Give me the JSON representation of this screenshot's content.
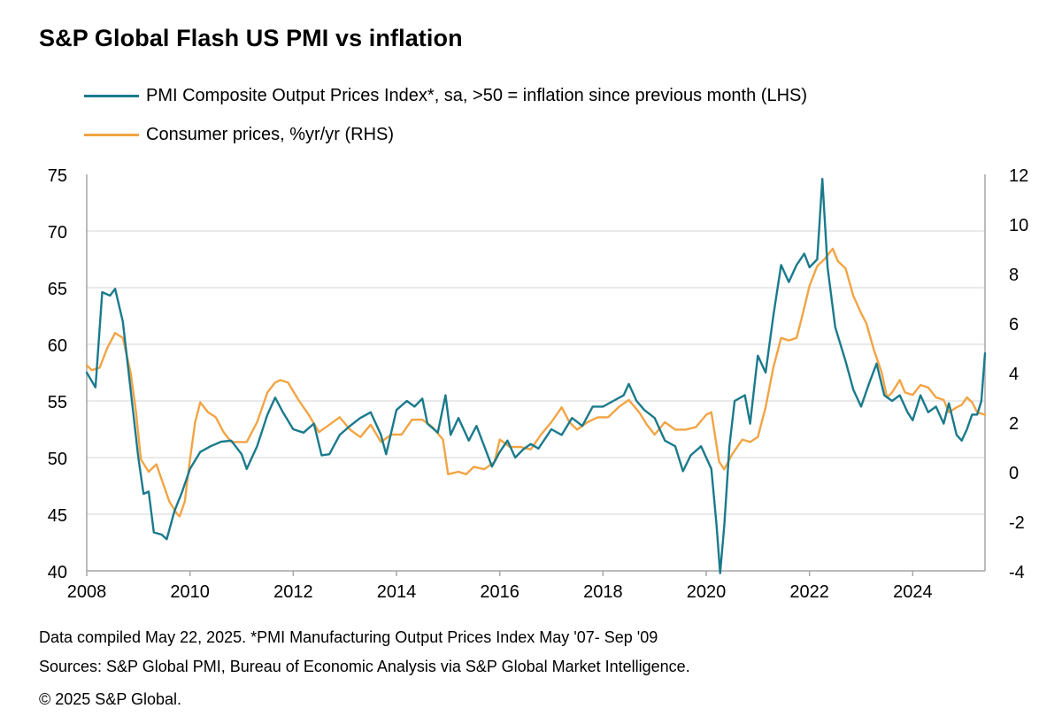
{
  "title": "S&P Global Flash US PMI vs inflation",
  "colors": {
    "pmi": "#1a7a8c",
    "cpi": "#f2a444",
    "grid": "#d4d4d4",
    "axis": "#a6a6a6"
  },
  "legend": [
    {
      "label": "PMI Composite Output Prices Index*, sa, >50 = inflation since previous month (LHS)"
    },
    {
      "label": "Consumer prices, %yr/yr (RHS)"
    }
  ],
  "footer": {
    "line1": "Data compiled May 22, 2025.  *PMI Manufacturing  Output Prices Index May '07- Sep '09",
    "line2": "Sources: S&P Global PMI,  Bureau of Economic Analysis via S&P Global Market Intelligence.",
    "line3": "© 2025 S&P Global."
  },
  "chart_data": {
    "type": "line",
    "title": "S&P Global Flash US PMI vs inflation",
    "x_range": [
      2008.0,
      2025.4
    ],
    "x_ticks": [
      "2008",
      "2010",
      "2012",
      "2014",
      "2016",
      "2018",
      "2020",
      "2022",
      "2024"
    ],
    "y_left": {
      "label": "LHS",
      "range": [
        40,
        75
      ],
      "ticks": [
        "75",
        "70",
        "65",
        "60",
        "55",
        "50",
        "45",
        "40"
      ]
    },
    "y_right": {
      "label": "RHS",
      "range": [
        -4,
        12
      ],
      "ticks": [
        "12",
        "10",
        "8",
        "6",
        "4",
        "2",
        "0",
        "-2",
        "-4"
      ]
    },
    "grid": true,
    "series": [
      {
        "name": "PMI Composite Output Prices Index*, sa, >50 = inflation since previous month (LHS)",
        "axis": "left",
        "points": [
          [
            2008.0,
            57.5
          ],
          [
            2008.17,
            56.2
          ],
          [
            2008.3,
            64.6
          ],
          [
            2008.45,
            64.3
          ],
          [
            2008.55,
            64.9
          ],
          [
            2008.7,
            62.0
          ],
          [
            2008.85,
            56.0
          ],
          [
            2009.0,
            50.0
          ],
          [
            2009.1,
            46.8
          ],
          [
            2009.2,
            47.0
          ],
          [
            2009.3,
            43.4
          ],
          [
            2009.45,
            43.2
          ],
          [
            2009.55,
            42.8
          ],
          [
            2009.7,
            45.3
          ],
          [
            2009.85,
            47.0
          ],
          [
            2010.0,
            49.0
          ],
          [
            2010.2,
            50.5
          ],
          [
            2010.4,
            51.0
          ],
          [
            2010.6,
            51.4
          ],
          [
            2010.8,
            51.5
          ],
          [
            2011.0,
            50.3
          ],
          [
            2011.1,
            49.0
          ],
          [
            2011.3,
            51.0
          ],
          [
            2011.5,
            53.8
          ],
          [
            2011.65,
            55.3
          ],
          [
            2011.8,
            54.0
          ],
          [
            2012.0,
            52.5
          ],
          [
            2012.2,
            52.2
          ],
          [
            2012.4,
            53.0
          ],
          [
            2012.55,
            50.2
          ],
          [
            2012.7,
            50.3
          ],
          [
            2012.9,
            52.0
          ],
          [
            2013.1,
            52.8
          ],
          [
            2013.3,
            53.5
          ],
          [
            2013.5,
            54.0
          ],
          [
            2013.7,
            52.0
          ],
          [
            2013.8,
            50.3
          ],
          [
            2014.0,
            54.2
          ],
          [
            2014.2,
            55.0
          ],
          [
            2014.35,
            54.5
          ],
          [
            2014.5,
            55.2
          ],
          [
            2014.6,
            53.0
          ],
          [
            2014.8,
            52.2
          ],
          [
            2014.95,
            55.5
          ],
          [
            2015.05,
            52.0
          ],
          [
            2015.2,
            53.5
          ],
          [
            2015.4,
            51.5
          ],
          [
            2015.55,
            52.8
          ],
          [
            2015.7,
            51.0
          ],
          [
            2015.85,
            49.2
          ],
          [
            2016.0,
            50.5
          ],
          [
            2016.15,
            51.5
          ],
          [
            2016.3,
            50.0
          ],
          [
            2016.45,
            50.7
          ],
          [
            2016.6,
            51.2
          ],
          [
            2016.75,
            50.8
          ],
          [
            2017.0,
            52.5
          ],
          [
            2017.2,
            52.0
          ],
          [
            2017.4,
            53.5
          ],
          [
            2017.6,
            52.8
          ],
          [
            2017.8,
            54.5
          ],
          [
            2018.0,
            54.5
          ],
          [
            2018.2,
            55.0
          ],
          [
            2018.4,
            55.5
          ],
          [
            2018.5,
            56.5
          ],
          [
            2018.65,
            55.0
          ],
          [
            2018.8,
            54.2
          ],
          [
            2019.0,
            53.5
          ],
          [
            2019.2,
            51.5
          ],
          [
            2019.4,
            51.0
          ],
          [
            2019.55,
            48.8
          ],
          [
            2019.7,
            50.2
          ],
          [
            2019.9,
            51.0
          ],
          [
            2020.0,
            50.0
          ],
          [
            2020.1,
            49.0
          ],
          [
            2020.2,
            44.0
          ],
          [
            2020.27,
            39.8
          ],
          [
            2020.35,
            44.0
          ],
          [
            2020.45,
            51.0
          ],
          [
            2020.55,
            55.0
          ],
          [
            2020.75,
            55.5
          ],
          [
            2020.85,
            53.0
          ],
          [
            2021.0,
            59.0
          ],
          [
            2021.15,
            57.5
          ],
          [
            2021.3,
            62.5
          ],
          [
            2021.45,
            67.0
          ],
          [
            2021.6,
            65.5
          ],
          [
            2021.75,
            67.0
          ],
          [
            2021.9,
            68.0
          ],
          [
            2022.0,
            66.8
          ],
          [
            2022.15,
            67.5
          ],
          [
            2022.25,
            74.6
          ],
          [
            2022.35,
            66.8
          ],
          [
            2022.5,
            61.5
          ],
          [
            2022.7,
            58.5
          ],
          [
            2022.85,
            56.0
          ],
          [
            2023.0,
            54.5
          ],
          [
            2023.15,
            56.5
          ],
          [
            2023.3,
            58.3
          ],
          [
            2023.45,
            55.5
          ],
          [
            2023.6,
            55.0
          ],
          [
            2023.75,
            55.5
          ],
          [
            2023.9,
            54.0
          ],
          [
            2024.0,
            53.3
          ],
          [
            2024.15,
            55.5
          ],
          [
            2024.3,
            54.0
          ],
          [
            2024.45,
            54.5
          ],
          [
            2024.6,
            53.0
          ],
          [
            2024.7,
            54.8
          ],
          [
            2024.85,
            52.0
          ],
          [
            2024.95,
            51.5
          ],
          [
            2025.05,
            52.5
          ],
          [
            2025.15,
            53.8
          ],
          [
            2025.25,
            53.8
          ],
          [
            2025.33,
            55.0
          ],
          [
            2025.4,
            59.2
          ]
        ]
      },
      {
        "name": "Consumer prices, %yr/yr (RHS)",
        "axis": "right",
        "points": [
          [
            2008.0,
            4.3
          ],
          [
            2008.1,
            4.1
          ],
          [
            2008.25,
            4.2
          ],
          [
            2008.4,
            5.0
          ],
          [
            2008.55,
            5.6
          ],
          [
            2008.7,
            5.4
          ],
          [
            2008.85,
            4.0
          ],
          [
            2008.95,
            2.5
          ],
          [
            2009.05,
            0.5
          ],
          [
            2009.2,
            0.0
          ],
          [
            2009.35,
            0.3
          ],
          [
            2009.5,
            -0.6
          ],
          [
            2009.6,
            -1.2
          ],
          [
            2009.75,
            -1.7
          ],
          [
            2009.8,
            -1.8
          ],
          [
            2009.9,
            -1.2
          ],
          [
            2010.0,
            0.5
          ],
          [
            2010.1,
            2.0
          ],
          [
            2010.2,
            2.8
          ],
          [
            2010.35,
            2.4
          ],
          [
            2010.5,
            2.2
          ],
          [
            2010.65,
            1.6
          ],
          [
            2010.8,
            1.2
          ],
          [
            2011.1,
            1.2
          ],
          [
            2011.3,
            2.0
          ],
          [
            2011.5,
            3.2
          ],
          [
            2011.65,
            3.6
          ],
          [
            2011.75,
            3.7
          ],
          [
            2011.9,
            3.6
          ],
          [
            2012.1,
            2.9
          ],
          [
            2012.3,
            2.3
          ],
          [
            2012.5,
            1.6
          ],
          [
            2012.7,
            1.9
          ],
          [
            2012.9,
            2.2
          ],
          [
            2013.1,
            1.7
          ],
          [
            2013.3,
            1.4
          ],
          [
            2013.5,
            1.9
          ],
          [
            2013.7,
            1.2
          ],
          [
            2013.9,
            1.5
          ],
          [
            2014.1,
            1.5
          ],
          [
            2014.3,
            2.1
          ],
          [
            2014.5,
            2.1
          ],
          [
            2014.7,
            1.8
          ],
          [
            2014.9,
            1.3
          ],
          [
            2015.0,
            -0.1
          ],
          [
            2015.2,
            0.0
          ],
          [
            2015.35,
            -0.1
          ],
          [
            2015.5,
            0.2
          ],
          [
            2015.7,
            0.1
          ],
          [
            2015.9,
            0.4
          ],
          [
            2016.0,
            1.3
          ],
          [
            2016.2,
            1.0
          ],
          [
            2016.4,
            1.0
          ],
          [
            2016.6,
            0.9
          ],
          [
            2016.8,
            1.5
          ],
          [
            2017.0,
            2.0
          ],
          [
            2017.2,
            2.6
          ],
          [
            2017.35,
            2.0
          ],
          [
            2017.5,
            1.7
          ],
          [
            2017.7,
            2.0
          ],
          [
            2017.9,
            2.2
          ],
          [
            2018.1,
            2.2
          ],
          [
            2018.3,
            2.6
          ],
          [
            2018.5,
            2.9
          ],
          [
            2018.7,
            2.4
          ],
          [
            2018.85,
            1.9
          ],
          [
            2019.0,
            1.5
          ],
          [
            2019.2,
            2.0
          ],
          [
            2019.4,
            1.7
          ],
          [
            2019.6,
            1.7
          ],
          [
            2019.8,
            1.8
          ],
          [
            2020.0,
            2.3
          ],
          [
            2020.1,
            2.4
          ],
          [
            2020.25,
            0.4
          ],
          [
            2020.35,
            0.1
          ],
          [
            2020.5,
            0.7
          ],
          [
            2020.7,
            1.3
          ],
          [
            2020.85,
            1.2
          ],
          [
            2021.0,
            1.4
          ],
          [
            2021.15,
            2.6
          ],
          [
            2021.3,
            4.2
          ],
          [
            2021.45,
            5.4
          ],
          [
            2021.6,
            5.3
          ],
          [
            2021.75,
            5.4
          ],
          [
            2021.85,
            6.2
          ],
          [
            2022.0,
            7.5
          ],
          [
            2022.15,
            8.3
          ],
          [
            2022.3,
            8.6
          ],
          [
            2022.45,
            9.0
          ],
          [
            2022.55,
            8.5
          ],
          [
            2022.7,
            8.2
          ],
          [
            2022.85,
            7.1
          ],
          [
            2023.0,
            6.4
          ],
          [
            2023.1,
            6.0
          ],
          [
            2023.25,
            4.9
          ],
          [
            2023.4,
            4.0
          ],
          [
            2023.5,
            3.0
          ],
          [
            2023.6,
            3.2
          ],
          [
            2023.75,
            3.7
          ],
          [
            2023.85,
            3.2
          ],
          [
            2024.0,
            3.1
          ],
          [
            2024.15,
            3.5
          ],
          [
            2024.3,
            3.4
          ],
          [
            2024.45,
            3.0
          ],
          [
            2024.6,
            2.9
          ],
          [
            2024.7,
            2.4
          ],
          [
            2024.85,
            2.6
          ],
          [
            2024.95,
            2.7
          ],
          [
            2025.05,
            3.0
          ],
          [
            2025.15,
            2.8
          ],
          [
            2025.25,
            2.4
          ],
          [
            2025.4,
            2.3
          ]
        ]
      }
    ]
  }
}
